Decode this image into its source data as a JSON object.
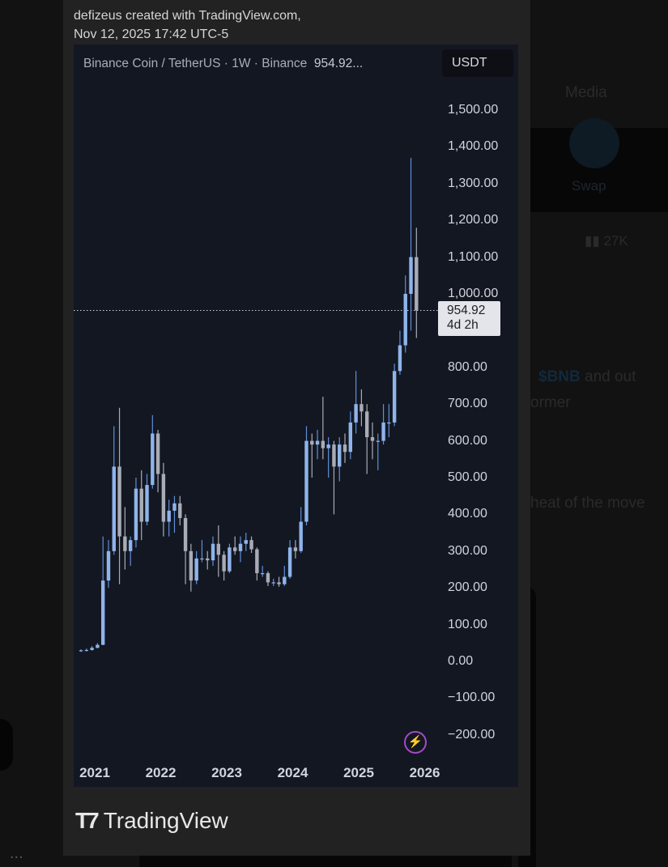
{
  "background_app": {
    "tab_media": "Media",
    "swap_label": "Swap",
    "views_count": "27K",
    "post_line1_ticker": "$BNB",
    "post_line1_rest": "and out",
    "post_line2": "ormer",
    "post_line3": "heat of the move",
    "more_label": "..."
  },
  "credit": {
    "line1": "defizeus created with TradingView.com,",
    "line2": "Nov 12, 2025 17:42 UTC-5"
  },
  "header": {
    "symbol": "Binance Coin / TetherUS · 1W · Binance",
    "last_price": "954.92...",
    "currency": "USDT"
  },
  "price_label": {
    "price": "954.92",
    "countdown": "4d 2h"
  },
  "brand": "TradingView",
  "colors": {
    "up": "#8fb4ea",
    "up_wick": "#5f8fd8",
    "down": "#a9acb5",
    "panel": "#131722",
    "alert": "#b65ad9"
  },
  "icons": {
    "alert": "lightning-bolt-icon",
    "logo": "tradingview-logo-icon"
  },
  "chart_data": {
    "type": "candlestick",
    "interval": "1W",
    "ylim": [
      -200,
      1500
    ],
    "yticks": [
      "1,500.00",
      "1,400.00",
      "1,300.00",
      "1,200.00",
      "1,100.00",
      "1,000.00",
      "800.00",
      "700.00",
      "600.00",
      "500.00",
      "400.00",
      "300.00",
      "200.00",
      "100.00",
      "0.00",
      "−100.00",
      "−200.00"
    ],
    "ytick_values": [
      1500,
      1400,
      1300,
      1200,
      1100,
      1000,
      800,
      700,
      600,
      500,
      400,
      300,
      200,
      100,
      0,
      -100,
      -200
    ],
    "xticks": [
      "2021",
      "2022",
      "2023",
      "2024",
      "2025",
      "2026"
    ],
    "last_price": 954.92,
    "grid": false,
    "candles": [
      {
        "d": "2020-10",
        "o": 28,
        "h": 33,
        "l": 26,
        "c": 30
      },
      {
        "d": "2020-11",
        "o": 30,
        "h": 35,
        "l": 27,
        "c": 31
      },
      {
        "d": "2020-12",
        "o": 31,
        "h": 42,
        "l": 29,
        "c": 37
      },
      {
        "d": "2021-01",
        "o": 37,
        "h": 50,
        "l": 35,
        "c": 45
      },
      {
        "d": "2021-02",
        "o": 45,
        "h": 340,
        "l": 44,
        "c": 220
      },
      {
        "d": "2021-03",
        "o": 220,
        "h": 330,
        "l": 200,
        "c": 300
      },
      {
        "d": "2021-04",
        "o": 300,
        "h": 640,
        "l": 290,
        "c": 530
      },
      {
        "d": "2021-05",
        "o": 530,
        "h": 690,
        "l": 210,
        "c": 340
      },
      {
        "d": "2021-06",
        "o": 340,
        "h": 420,
        "l": 250,
        "c": 300
      },
      {
        "d": "2021-07",
        "o": 300,
        "h": 340,
        "l": 260,
        "c": 330
      },
      {
        "d": "2021-08",
        "o": 330,
        "h": 500,
        "l": 310,
        "c": 470
      },
      {
        "d": "2021-09",
        "o": 470,
        "h": 520,
        "l": 330,
        "c": 380
      },
      {
        "d": "2021-10",
        "o": 380,
        "h": 510,
        "l": 370,
        "c": 480
      },
      {
        "d": "2021-11",
        "o": 480,
        "h": 670,
        "l": 470,
        "c": 620
      },
      {
        "d": "2021-12",
        "o": 620,
        "h": 630,
        "l": 460,
        "c": 510
      },
      {
        "d": "2022-01",
        "o": 510,
        "h": 540,
        "l": 340,
        "c": 380
      },
      {
        "d": "2022-02",
        "o": 380,
        "h": 440,
        "l": 340,
        "c": 410
      },
      {
        "d": "2022-03",
        "o": 410,
        "h": 450,
        "l": 350,
        "c": 430
      },
      {
        "d": "2022-04",
        "o": 430,
        "h": 450,
        "l": 370,
        "c": 390
      },
      {
        "d": "2022-05",
        "o": 390,
        "h": 400,
        "l": 210,
        "c": 300
      },
      {
        "d": "2022-06",
        "o": 300,
        "h": 320,
        "l": 190,
        "c": 220
      },
      {
        "d": "2022-07",
        "o": 220,
        "h": 300,
        "l": 210,
        "c": 280
      },
      {
        "d": "2022-08",
        "o": 280,
        "h": 330,
        "l": 270,
        "c": 280
      },
      {
        "d": "2022-09",
        "o": 280,
        "h": 300,
        "l": 250,
        "c": 275
      },
      {
        "d": "2022-10",
        "o": 275,
        "h": 340,
        "l": 260,
        "c": 320
      },
      {
        "d": "2022-11",
        "o": 320,
        "h": 370,
        "l": 230,
        "c": 290
      },
      {
        "d": "2022-12",
        "o": 290,
        "h": 300,
        "l": 220,
        "c": 245
      },
      {
        "d": "2023-01",
        "o": 245,
        "h": 320,
        "l": 240,
        "c": 310
      },
      {
        "d": "2023-02",
        "o": 310,
        "h": 340,
        "l": 290,
        "c": 300
      },
      {
        "d": "2023-03",
        "o": 300,
        "h": 340,
        "l": 270,
        "c": 320
      },
      {
        "d": "2023-04",
        "o": 320,
        "h": 350,
        "l": 300,
        "c": 330
      },
      {
        "d": "2023-05",
        "o": 330,
        "h": 340,
        "l": 295,
        "c": 305
      },
      {
        "d": "2023-06",
        "o": 305,
        "h": 310,
        "l": 220,
        "c": 240
      },
      {
        "d": "2023-07",
        "o": 240,
        "h": 260,
        "l": 230,
        "c": 240
      },
      {
        "d": "2023-08",
        "o": 240,
        "h": 245,
        "l": 205,
        "c": 215
      },
      {
        "d": "2023-09",
        "o": 215,
        "h": 225,
        "l": 205,
        "c": 215
      },
      {
        "d": "2023-10",
        "o": 215,
        "h": 230,
        "l": 203,
        "c": 210
      },
      {
        "d": "2023-11",
        "o": 210,
        "h": 260,
        "l": 205,
        "c": 230
      },
      {
        "d": "2023-12",
        "o": 230,
        "h": 330,
        "l": 225,
        "c": 310
      },
      {
        "d": "2024-01",
        "o": 310,
        "h": 330,
        "l": 280,
        "c": 300
      },
      {
        "d": "2024-02",
        "o": 300,
        "h": 420,
        "l": 295,
        "c": 380
      },
      {
        "d": "2024-03",
        "o": 380,
        "h": 640,
        "l": 370,
        "c": 600
      },
      {
        "d": "2024-04",
        "o": 600,
        "h": 620,
        "l": 500,
        "c": 590
      },
      {
        "d": "2024-05",
        "o": 590,
        "h": 630,
        "l": 550,
        "c": 600
      },
      {
        "d": "2024-06",
        "o": 600,
        "h": 720,
        "l": 550,
        "c": 580
      },
      {
        "d": "2024-07",
        "o": 580,
        "h": 610,
        "l": 500,
        "c": 590
      },
      {
        "d": "2024-08",
        "o": 590,
        "h": 600,
        "l": 400,
        "c": 530
      },
      {
        "d": "2024-09",
        "o": 530,
        "h": 610,
        "l": 490,
        "c": 590
      },
      {
        "d": "2024-10",
        "o": 590,
        "h": 620,
        "l": 540,
        "c": 570
      },
      {
        "d": "2024-11",
        "o": 570,
        "h": 680,
        "l": 550,
        "c": 650
      },
      {
        "d": "2024-12",
        "o": 650,
        "h": 790,
        "l": 620,
        "c": 700
      },
      {
        "d": "2025-01",
        "o": 700,
        "h": 740,
        "l": 640,
        "c": 680
      },
      {
        "d": "2025-02",
        "o": 680,
        "h": 700,
        "l": 510,
        "c": 610
      },
      {
        "d": "2025-03",
        "o": 610,
        "h": 650,
        "l": 550,
        "c": 600
      },
      {
        "d": "2025-04",
        "o": 600,
        "h": 620,
        "l": 520,
        "c": 600
      },
      {
        "d": "2025-05",
        "o": 600,
        "h": 700,
        "l": 590,
        "c": 650
      },
      {
        "d": "2025-06",
        "o": 650,
        "h": 700,
        "l": 610,
        "c": 650
      },
      {
        "d": "2025-07",
        "o": 650,
        "h": 810,
        "l": 640,
        "c": 790
      },
      {
        "d": "2025-08",
        "o": 790,
        "h": 900,
        "l": 780,
        "c": 860
      },
      {
        "d": "2025-09",
        "o": 860,
        "h": 1050,
        "l": 840,
        "c": 1000
      },
      {
        "d": "2025-10",
        "o": 1000,
        "h": 1370,
        "l": 900,
        "c": 1100
      },
      {
        "d": "2025-11",
        "o": 1100,
        "h": 1180,
        "l": 880,
        "c": 955
      }
    ]
  }
}
